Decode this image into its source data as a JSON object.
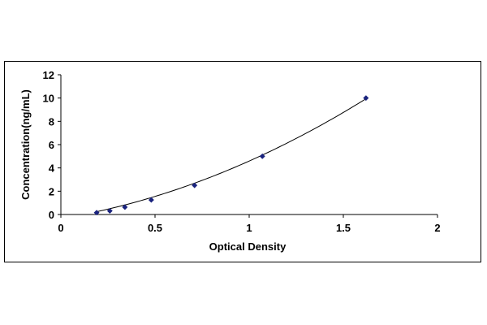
{
  "chart_data": {
    "type": "scatter",
    "title": "",
    "xlabel": "Optical Density",
    "ylabel": "Concentration(ng/mL)",
    "xlim": [
      0,
      2
    ],
    "ylim": [
      0,
      12
    ],
    "x_ticks": [
      0,
      0.5,
      1,
      1.5,
      2
    ],
    "x_tick_labels": [
      "0",
      "0.5",
      "1",
      "1.5",
      "2"
    ],
    "y_ticks": [
      0,
      2,
      4,
      6,
      8,
      10,
      12
    ],
    "y_tick_labels": [
      "0",
      "2",
      "4",
      "6",
      "8",
      "10",
      "12"
    ],
    "grid": false,
    "legend": "none",
    "marker": "diamond",
    "series": [
      {
        "x": [
          0.19,
          0.26,
          0.34,
          0.48,
          0.71,
          1.07,
          1.62
        ],
        "y": [
          0.16,
          0.31,
          0.63,
          1.25,
          2.5,
          5,
          10
        ]
      }
    ],
    "fit_curve": {
      "type": "polynomial",
      "coefficients": [
        -0.35,
        2.67,
        2.27
      ]
    },
    "colors": {
      "marker": "#1a237e",
      "curve": "#000000",
      "axis": "#000000"
    }
  }
}
